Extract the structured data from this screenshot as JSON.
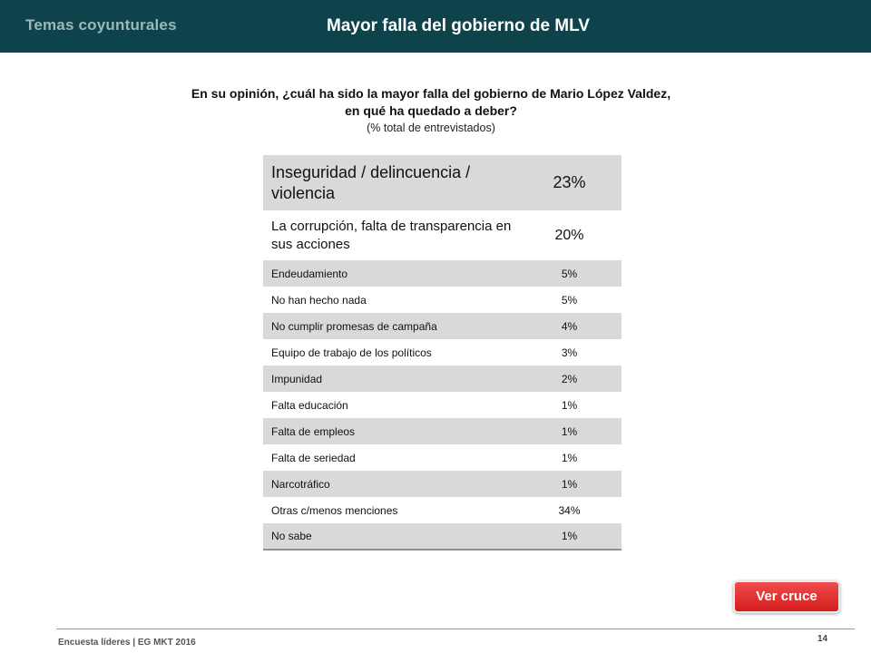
{
  "header": {
    "section": "Temas coyunturales",
    "title": "Mayor falla del gobierno de MLV"
  },
  "question": {
    "line1": "En su opinión, ¿cuál ha sido la mayor falla del gobierno de Mario López Valdez,",
    "line2": "en qué ha quedado a deber?",
    "subtitle": "(% total de entrevistados)"
  },
  "table": {
    "rows": [
      {
        "label": "Inseguridad / delincuencia / violencia",
        "value": "23%"
      },
      {
        "label": "La corrupción, falta de transparencia en sus acciones",
        "value": "20%"
      },
      {
        "label": "Endeudamiento",
        "value": "5%"
      },
      {
        "label": "No han hecho nada",
        "value": "5%"
      },
      {
        "label": "No cumplir promesas de campaña",
        "value": "4%"
      },
      {
        "label": "Equipo de trabajo de los políticos",
        "value": "3%"
      },
      {
        "label": "Impunidad",
        "value": "2%"
      },
      {
        "label": "Falta educación",
        "value": "1%"
      },
      {
        "label": "Falta de empleos",
        "value": "1%"
      },
      {
        "label": "Falta de seriedad",
        "value": "1%"
      },
      {
        "label": "Narcotráfico",
        "value": "1%"
      },
      {
        "label": "Otras c/menos menciones",
        "value": "34%"
      },
      {
        "label": "No sabe",
        "value": "1%"
      }
    ]
  },
  "button": {
    "label": "Ver cruce"
  },
  "footer": {
    "source": "Encuesta líderes | EG MKT 2016",
    "page": "14"
  },
  "colors": {
    "header_bg": "#0e434b",
    "row_shade": "#d9d9d9",
    "button": "#e02828"
  }
}
